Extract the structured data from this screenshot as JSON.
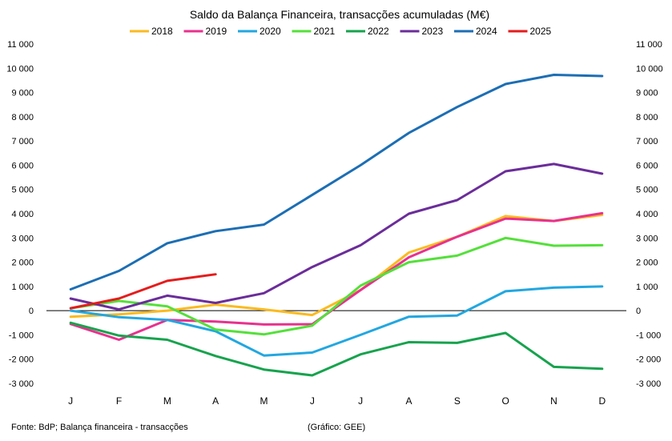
{
  "chart_data": {
    "type": "line",
    "title": "Saldo da Balança Financeira, transacções acumuladas (M€)",
    "categories": [
      "J",
      "F",
      "M",
      "A",
      "M",
      "J",
      "J",
      "A",
      "S",
      "O",
      "N",
      "D"
    ],
    "ylim": [
      -3000,
      11000
    ],
    "yticks": [
      -3000,
      -2000,
      -1000,
      0,
      1000,
      2000,
      3000,
      4000,
      5000,
      6000,
      7000,
      8000,
      9000,
      10000,
      11000
    ],
    "ytick_labels": [
      "-3 000",
      "-2 000",
      "-1 000",
      "0",
      "1 000",
      "2 000",
      "3 000",
      "4 000",
      "5 000",
      "6 000",
      "7 000",
      "8 000",
      "9 000",
      "10 000",
      "11 000"
    ],
    "legend_position": "top",
    "grid": false,
    "series": [
      {
        "name": "2018",
        "color": "#FBBA1E",
        "values": [
          -250,
          -150,
          0,
          250,
          50,
          -180,
          850,
          2400,
          3050,
          3900,
          3700,
          3950
        ]
      },
      {
        "name": "2019",
        "color": "#E8318E",
        "values": [
          -550,
          -1200,
          -380,
          -450,
          -570,
          -560,
          850,
          2200,
          3050,
          3800,
          3700,
          4020
        ]
      },
      {
        "name": "2020",
        "color": "#22A7E0",
        "values": [
          0,
          -270,
          -380,
          -850,
          -1850,
          -1730,
          -1000,
          -250,
          -200,
          800,
          950,
          1000
        ]
      },
      {
        "name": "2021",
        "color": "#54E03A",
        "values": [
          100,
          400,
          180,
          -780,
          -980,
          -620,
          1030,
          2000,
          2270,
          3000,
          2680,
          2700
        ]
      },
      {
        "name": "2022",
        "color": "#17A34E",
        "values": [
          -500,
          -1030,
          -1200,
          -1870,
          -2430,
          -2670,
          -1800,
          -1300,
          -1330,
          -920,
          -2320,
          -2400
        ]
      },
      {
        "name": "2023",
        "color": "#6B2D9A",
        "values": [
          500,
          50,
          620,
          320,
          720,
          1800,
          2700,
          4000,
          4560,
          5750,
          6050,
          5650
        ]
      },
      {
        "name": "2024",
        "color": "#1C6EB4",
        "values": [
          880,
          1640,
          2780,
          3280,
          3550,
          null,
          6000,
          7330,
          8400,
          9350,
          9730,
          9680
        ]
      },
      {
        "name": "2025",
        "color": "#E51C1C",
        "values": [
          100,
          500,
          1230,
          1500,
          null,
          null,
          null,
          null,
          null,
          null,
          null,
          null
        ]
      }
    ],
    "annotations": {
      "source": "Fonte: BdP; Balança financeira - transacções",
      "credit": "(Gráfico: GEE)"
    }
  }
}
